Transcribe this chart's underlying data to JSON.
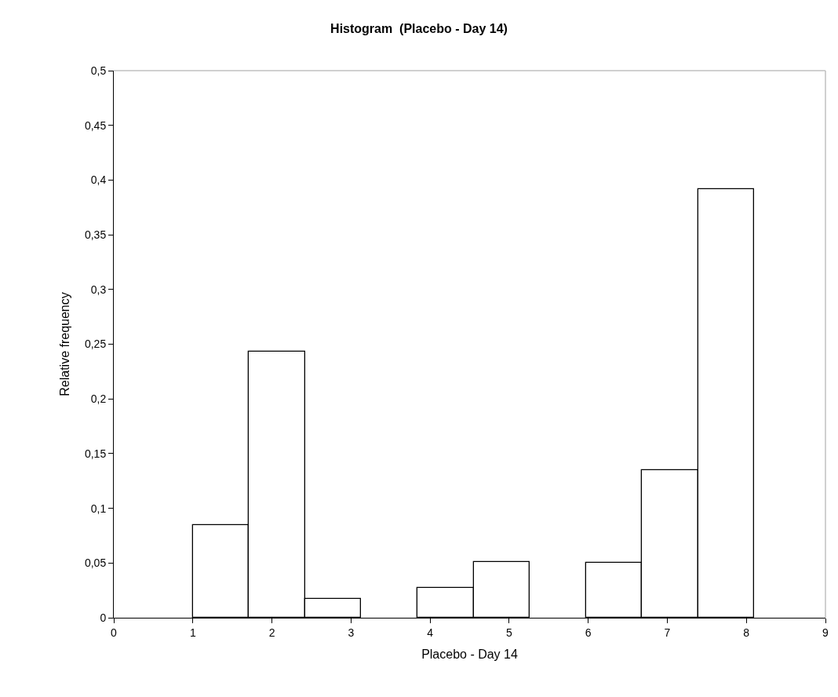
{
  "chart_data": {
    "type": "histogram",
    "title": "Histogram  (Placebo - Day 14)",
    "xlabel": "Placebo - Day 14",
    "ylabel": "Relative frequency",
    "bins": [
      1,
      1.71,
      2.42,
      3.13,
      3.84,
      4.55,
      5.26,
      5.97,
      6.68,
      7.39,
      8.1
    ],
    "values": [
      0.085,
      0.243,
      0.017,
      0,
      0.027,
      0.051,
      0,
      0.05,
      0.135,
      0.392
    ],
    "color": "#ffffff",
    "xlim": [
      0,
      9
    ],
    "xticks": [
      0,
      1,
      2,
      3,
      4,
      5,
      6,
      7,
      8,
      9
    ],
    "ylim": [
      0,
      0.5
    ],
    "yticks": [
      {
        "value": 0,
        "label": "0"
      },
      {
        "value": 0.05,
        "label": "0,05"
      },
      {
        "value": 0.1,
        "label": "0,1"
      },
      {
        "value": 0.15,
        "label": "0,15"
      },
      {
        "value": 0.2,
        "label": "0,2"
      },
      {
        "value": 0.25,
        "label": "0,25"
      },
      {
        "value": 0.3,
        "label": "0,3"
      },
      {
        "value": 0.35,
        "label": "0,35"
      },
      {
        "value": 0.4,
        "label": "0,4"
      },
      {
        "value": 0.45,
        "label": "0,45"
      },
      {
        "value": 0.5,
        "label": "0,5"
      }
    ]
  }
}
